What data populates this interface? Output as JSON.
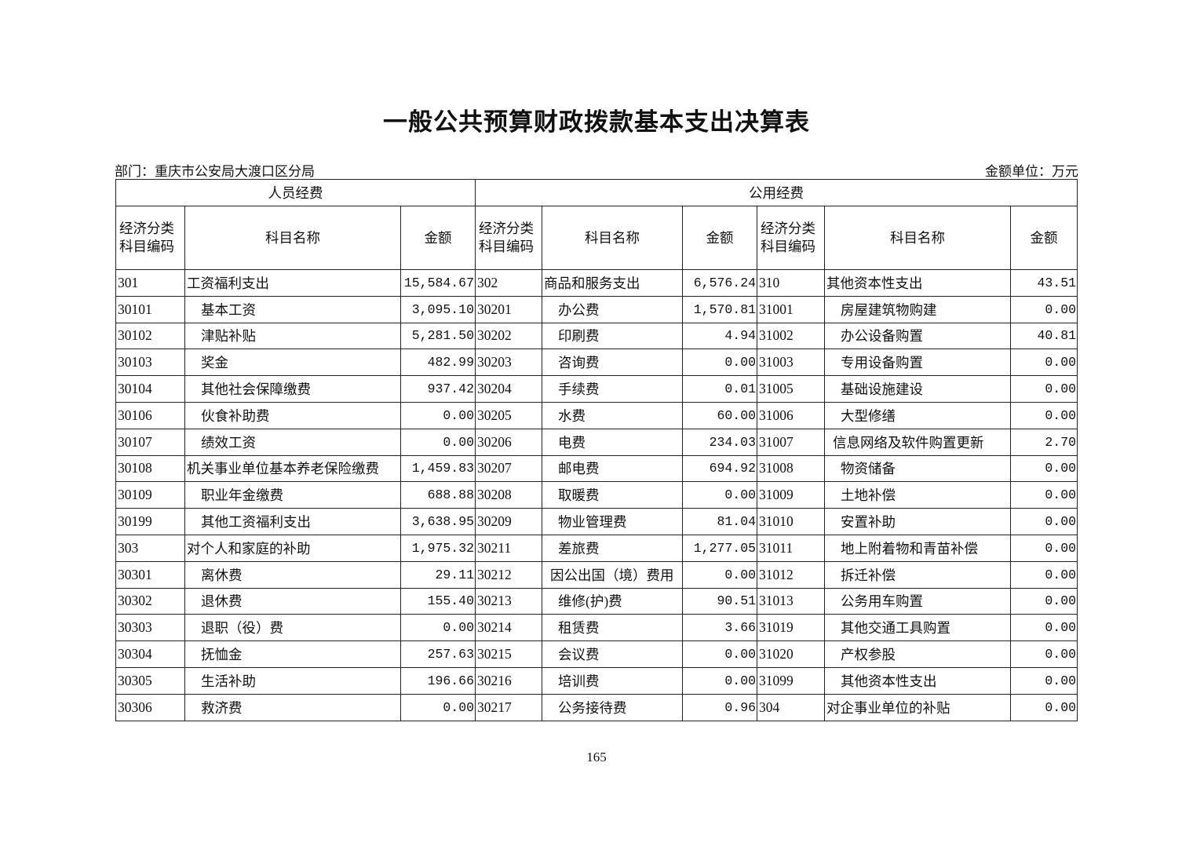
{
  "title": "一般公共预算财政拨款基本支出决算表",
  "department": "部门：重庆市公安局大渡口区分局",
  "unit": "金额单位：万元",
  "groups": [
    "人员经费",
    "公用经费"
  ],
  "headers": {
    "code": "经济分类\n科目编码",
    "code_l1": "经济分类",
    "code_l2": "科目编码",
    "name": "科目名称",
    "amount": "金额"
  },
  "rows": [
    [
      {
        "c": "301",
        "n": "工资福利支出",
        "a": "15,584.67",
        "i": 0
      },
      {
        "c": "302",
        "n": "商品和服务支出",
        "a": "6,576.24",
        "i": 0
      },
      {
        "c": "310",
        "n": "其他资本性支出",
        "a": "43.51",
        "i": 0
      }
    ],
    [
      {
        "c": "30101",
        "n": "基本工资",
        "a": "3,095.10",
        "i": 1
      },
      {
        "c": "30201",
        "n": "办公费",
        "a": "1,570.81",
        "i": 1
      },
      {
        "c": "31001",
        "n": "房屋建筑物购建",
        "a": "0.00",
        "i": 1
      }
    ],
    [
      {
        "c": "30102",
        "n": "津贴补贴",
        "a": "5,281.50",
        "i": 1
      },
      {
        "c": "30202",
        "n": "印刷费",
        "a": "4.94",
        "i": 1
      },
      {
        "c": "31002",
        "n": "办公设备购置",
        "a": "40.81",
        "i": 1
      }
    ],
    [
      {
        "c": "30103",
        "n": "奖金",
        "a": "482.99",
        "i": 1
      },
      {
        "c": "30203",
        "n": "咨询费",
        "a": "0.00",
        "i": 1
      },
      {
        "c": "31003",
        "n": "专用设备购置",
        "a": "0.00",
        "i": 1
      }
    ],
    [
      {
        "c": "30104",
        "n": "其他社会保障缴费",
        "a": "937.42",
        "i": 1
      },
      {
        "c": "30204",
        "n": "手续费",
        "a": "0.01",
        "i": 1
      },
      {
        "c": "31005",
        "n": "基础设施建设",
        "a": "0.00",
        "i": 1
      }
    ],
    [
      {
        "c": "30106",
        "n": "伙食补助费",
        "a": "0.00",
        "i": 1
      },
      {
        "c": "30205",
        "n": "水费",
        "a": "60.00",
        "i": 1
      },
      {
        "c": "31006",
        "n": "大型修缮",
        "a": "0.00",
        "i": 1
      }
    ],
    [
      {
        "c": "30107",
        "n": "绩效工资",
        "a": "0.00",
        "i": 1
      },
      {
        "c": "30206",
        "n": "电费",
        "a": "234.03",
        "i": 1
      },
      {
        "c": "31007",
        "n": "信息网络及软件购置更新",
        "a": "2.70",
        "i": 2
      }
    ],
    [
      {
        "c": "30108",
        "n": "机关事业单位基本养老保险缴费",
        "a": "1,459.83",
        "i": 0
      },
      {
        "c": "30207",
        "n": "邮电费",
        "a": "694.92",
        "i": 1
      },
      {
        "c": "31008",
        "n": "物资储备",
        "a": "0.00",
        "i": 1
      }
    ],
    [
      {
        "c": "30109",
        "n": "职业年金缴费",
        "a": "688.88",
        "i": 1
      },
      {
        "c": "30208",
        "n": "取暖费",
        "a": "0.00",
        "i": 1
      },
      {
        "c": "31009",
        "n": "土地补偿",
        "a": "0.00",
        "i": 1
      }
    ],
    [
      {
        "c": "30199",
        "n": "其他工资福利支出",
        "a": "3,638.95",
        "i": 1
      },
      {
        "c": "30209",
        "n": "物业管理费",
        "a": "81.04",
        "i": 1
      },
      {
        "c": "31010",
        "n": "安置补助",
        "a": "0.00",
        "i": 1
      }
    ],
    [
      {
        "c": "303",
        "n": "对个人和家庭的补助",
        "a": "1,975.32",
        "i": 0
      },
      {
        "c": "30211",
        "n": "差旅费",
        "a": "1,277.05",
        "i": 1
      },
      {
        "c": "31011",
        "n": "地上附着物和青苗补偿",
        "a": "0.00",
        "i": 1
      }
    ],
    [
      {
        "c": "30301",
        "n": "离休费",
        "a": "29.11",
        "i": 1
      },
      {
        "c": "30212",
        "n": "因公出国（境）费用",
        "a": "0.00",
        "i": 2
      },
      {
        "c": "31012",
        "n": "拆迁补偿",
        "a": "0.00",
        "i": 1
      }
    ],
    [
      {
        "c": "30302",
        "n": "退休费",
        "a": "155.40",
        "i": 1
      },
      {
        "c": "30213",
        "n": "维修(护)费",
        "a": "90.51",
        "i": 1
      },
      {
        "c": "31013",
        "n": "公务用车购置",
        "a": "0.00",
        "i": 1
      }
    ],
    [
      {
        "c": "30303",
        "n": "退职（役）费",
        "a": "0.00",
        "i": 1
      },
      {
        "c": "30214",
        "n": "租赁费",
        "a": "3.66",
        "i": 1
      },
      {
        "c": "31019",
        "n": "其他交通工具购置",
        "a": "0.00",
        "i": 1
      }
    ],
    [
      {
        "c": "30304",
        "n": "抚恤金",
        "a": "257.63",
        "i": 1
      },
      {
        "c": "30215",
        "n": "会议费",
        "a": "0.00",
        "i": 1
      },
      {
        "c": "31020",
        "n": "产权参股",
        "a": "0.00",
        "i": 1
      }
    ],
    [
      {
        "c": "30305",
        "n": "生活补助",
        "a": "196.66",
        "i": 1
      },
      {
        "c": "30216",
        "n": "培训费",
        "a": "0.00",
        "i": 1
      },
      {
        "c": "31099",
        "n": "其他资本性支出",
        "a": "0.00",
        "i": 1
      }
    ],
    [
      {
        "c": "30306",
        "n": "救济费",
        "a": "0.00",
        "i": 1
      },
      {
        "c": "30217",
        "n": "公务接待费",
        "a": "0.96",
        "i": 1
      },
      {
        "c": "304",
        "n": "对企事业单位的补贴",
        "a": "0.00",
        "i": 0
      }
    ]
  ],
  "page_number": "165"
}
